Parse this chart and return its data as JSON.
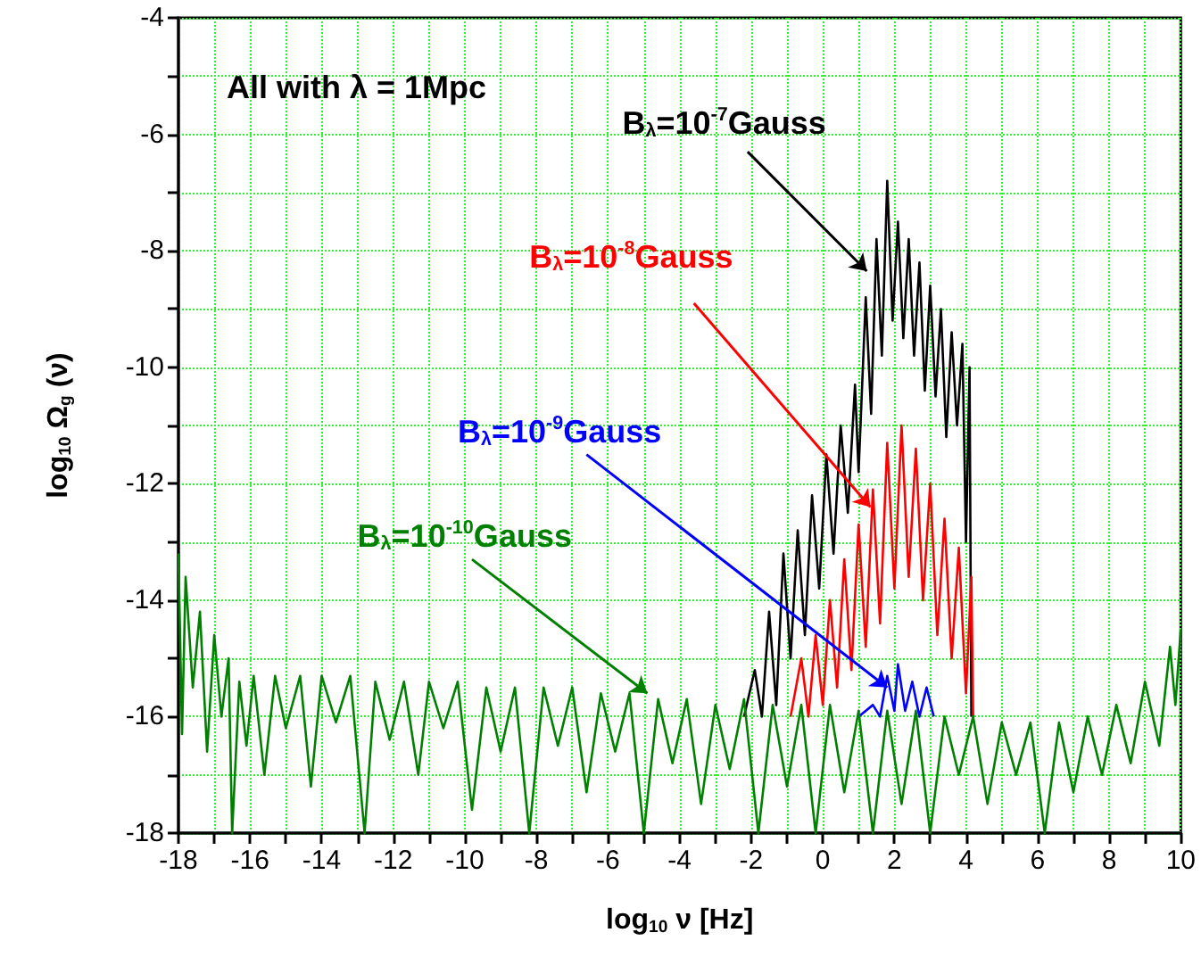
{
  "chart_data": {
    "type": "line",
    "xlabel": "log$_{10}$ ν [Hz]",
    "ylabel": "log$_{10}$ Ω$_{g}$ (ν)",
    "annotations": [
      "All with λ = 1Mpc"
    ],
    "xlim": [
      -18,
      10
    ],
    "ylim": [
      -18,
      -4
    ],
    "xticks": [
      -18,
      {
        "value": -17,
        "label": null
      },
      -16,
      {
        "value": -15,
        "label": null
      },
      -14,
      {
        "value": -13,
        "label": null
      },
      -12,
      {
        "value": -11,
        "label": null
      },
      -10,
      {
        "value": -9,
        "label": null
      },
      -8,
      {
        "value": -7,
        "label": null
      },
      -6,
      {
        "value": -5,
        "label": null
      },
      -4,
      {
        "value": -3,
        "label": null
      },
      -2,
      {
        "value": -1,
        "label": null
      },
      0,
      {
        "value": 1,
        "label": null
      },
      2,
      {
        "value": 3,
        "label": null
      },
      4,
      {
        "value": 5,
        "label": null
      },
      6,
      {
        "value": 7,
        "label": null
      },
      8,
      {
        "value": 9,
        "label": null
      },
      10
    ],
    "yticks": [
      -18,
      {
        "value": -17,
        "label": null
      },
      -16,
      {
        "value": -15,
        "label": null
      },
      -14,
      {
        "value": -13,
        "label": null
      },
      -12,
      {
        "value": -11,
        "label": null
      },
      -10,
      {
        "value": -9,
        "label": null
      },
      -8,
      {
        "value": -7,
        "label": null
      },
      -6,
      {
        "value": -5,
        "label": null
      },
      -4
    ],
    "grid": true,
    "legend": false,
    "marker": "none",
    "line_style": "solid",
    "series": [
      {
        "name": "B$_{λ}$=10$^{-7}$Gauss",
        "color": "#000000",
        "x": [
          -2.2,
          -1.9,
          -1.7,
          -1.5,
          -1.3,
          -1.1,
          -0.9,
          -0.7,
          -0.5,
          -0.3,
          -0.1,
          0.1,
          0.3,
          0.5,
          0.7,
          0.9,
          1.0,
          1.2,
          1.35,
          1.5,
          1.65,
          1.8,
          1.95,
          2.1,
          2.25,
          2.4,
          2.55,
          2.7,
          2.85,
          3.0,
          3.15,
          3.3,
          3.45,
          3.6,
          3.75,
          3.9,
          4.0,
          4.1,
          4.15
        ],
        "values": [
          -16,
          -15.2,
          -16,
          -14.2,
          -15.8,
          -13.2,
          -15,
          -12.8,
          -14.6,
          -12.2,
          -13.8,
          -11.5,
          -13.2,
          -11,
          -12.5,
          -10.3,
          -11.8,
          -8.8,
          -10.8,
          -7.8,
          -9.8,
          -6.8,
          -9.2,
          -7.5,
          -9.5,
          -7.8,
          -9.8,
          -8.2,
          -10.4,
          -8.6,
          -10.5,
          -9,
          -11.2,
          -9.4,
          -11,
          -9.6,
          -13,
          -10,
          -16
        ]
      },
      {
        "name": "B$_{λ}$=10$^{-8}$Gauss",
        "color": "#ff0000",
        "x": [
          -0.9,
          -0.6,
          -0.4,
          -0.2,
          0,
          0.2,
          0.4,
          0.6,
          0.8,
          1.0,
          1.2,
          1.4,
          1.6,
          1.8,
          2.0,
          2.2,
          2.4,
          2.6,
          2.8,
          3.0,
          3.2,
          3.4,
          3.6,
          3.8,
          4.0,
          4.15,
          4.2
        ],
        "values": [
          -16,
          -15,
          -16,
          -14.6,
          -15.8,
          -14,
          -15.5,
          -13.3,
          -15.2,
          -12.7,
          -14.8,
          -12.1,
          -14.4,
          -11.3,
          -13.8,
          -11,
          -13.6,
          -11.4,
          -14,
          -12,
          -14.6,
          -12.6,
          -15,
          -13.1,
          -15.6,
          -13.6,
          -16
        ]
      },
      {
        "name": "B$_{λ}$=10$^{-9}$Gauss",
        "color": "#0000ff",
        "x": [
          1.0,
          1.4,
          1.6,
          1.8,
          2.0,
          2.1,
          2.3,
          2.5,
          2.7,
          2.9,
          3.1
        ],
        "values": [
          -16,
          -15.8,
          -16,
          -15.3,
          -15.9,
          -15.1,
          -15.9,
          -15.4,
          -16,
          -15.5,
          -16
        ]
      },
      {
        "name": "B$_{λ}$=10$^{-10}$Gauss",
        "color": "#008000",
        "x": [
          -18,
          -17.9,
          -17.8,
          -17.6,
          -17.4,
          -17.2,
          -17,
          -16.8,
          -16.6,
          -16.5,
          -16.3,
          -16.1,
          -15.9,
          -15.6,
          -15.3,
          -15,
          -14.6,
          -14.3,
          -14,
          -13.6,
          -13.2,
          -12.8,
          -12.5,
          -12.1,
          -11.7,
          -11.3,
          -11,
          -10.6,
          -10.2,
          -9.8,
          -9.4,
          -9,
          -8.6,
          -8.2,
          -7.8,
          -7.4,
          -7,
          -6.6,
          -6.2,
          -5.8,
          -5.4,
          -5,
          -4.6,
          -4.2,
          -3.8,
          -3.4,
          -3,
          -2.6,
          -2.2,
          -1.8,
          -1.4,
          -1,
          -0.6,
          -0.2,
          0.2,
          0.6,
          1,
          1.4,
          1.8,
          2.2,
          2.6,
          3,
          3.4,
          3.8,
          4.2,
          4.6,
          5,
          5.4,
          5.8,
          6.2,
          6.6,
          7,
          7.4,
          7.8,
          8.2,
          8.6,
          9,
          9.4,
          9.7,
          9.85,
          10
        ],
        "values": [
          -13.2,
          -16.3,
          -13.6,
          -15.5,
          -14.2,
          -16.6,
          -14.6,
          -16,
          -15,
          -18,
          -15.4,
          -16.5,
          -15.3,
          -17,
          -15.3,
          -16.2,
          -15.3,
          -17.2,
          -15.3,
          -16.1,
          -15.3,
          -18,
          -15.4,
          -16.4,
          -15.4,
          -17,
          -15.4,
          -16.2,
          -15.4,
          -17.6,
          -15.5,
          -16.6,
          -15.5,
          -18,
          -15.5,
          -16.5,
          -15.5,
          -17.3,
          -15.6,
          -16.6,
          -15.6,
          -18,
          -15.7,
          -16.8,
          -15.7,
          -17.5,
          -15.8,
          -16.9,
          -15.7,
          -18,
          -15.8,
          -17.2,
          -15.8,
          -18,
          -15.8,
          -17.3,
          -15.9,
          -18,
          -15.9,
          -17.5,
          -15.9,
          -18,
          -16,
          -17,
          -16,
          -17.5,
          -16.1,
          -17,
          -16.1,
          -18,
          -16.1,
          -17.3,
          -16,
          -17,
          -15.8,
          -16.8,
          -15.4,
          -16.5,
          -14.8,
          -15.8,
          -14.5
        ]
      }
    ]
  }
}
